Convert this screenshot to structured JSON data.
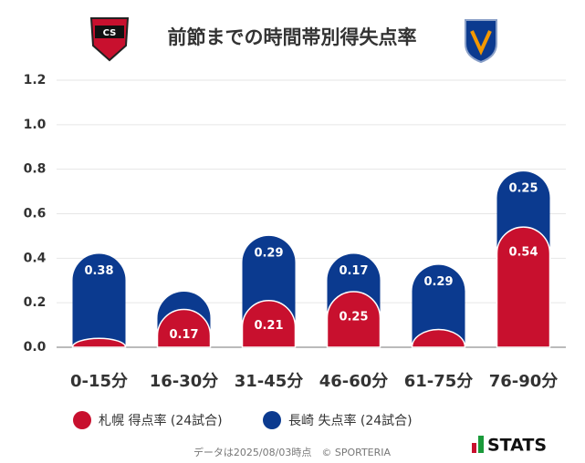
{
  "chart_data": {
    "type": "stacked-bar",
    "title": "前節までの時間帯別得失点率",
    "categories": [
      "0-15分",
      "16-30分",
      "31-45分",
      "46-60分",
      "61-75分",
      "76-90分"
    ],
    "series": [
      {
        "name": "札幌 得点率 (24試合)",
        "color": "#c8102e",
        "values": [
          0.04,
          0.17,
          0.21,
          0.25,
          0.08,
          0.54
        ],
        "value_labels": [
          null,
          "0.17",
          "0.21",
          "0.25",
          null,
          "0.54"
        ]
      },
      {
        "name": "長崎 失点率 (24試合)",
        "color": "#0b3a8f",
        "values": [
          0.38,
          0.08,
          0.29,
          0.17,
          0.29,
          0.25
        ],
        "value_labels": [
          "0.38",
          null,
          "0.29",
          "0.17",
          "0.29",
          "0.25"
        ]
      }
    ],
    "ylim": [
      0,
      1.2
    ],
    "yticks": [
      {
        "value": 0,
        "label": "0.0"
      },
      0.2,
      0.4,
      0.6,
      0.8,
      {
        "value": 1,
        "label": "1.0"
      },
      1.2
    ],
    "grid": true,
    "footer": "データは2025/08/03時点　© SPORTERIA",
    "brand": "STATS"
  }
}
